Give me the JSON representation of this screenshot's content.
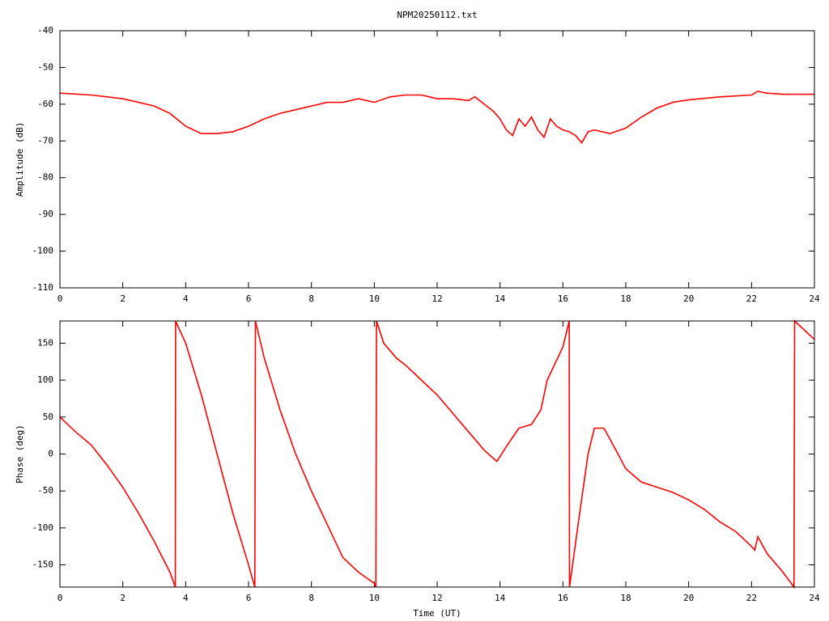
{
  "chart_data": [
    {
      "type": "line",
      "title": "NPM20250112.txt",
      "y_label": "Amplitude (dB)",
      "xlim": [
        0,
        24
      ],
      "ylim": [
        -110,
        -40
      ],
      "xticks": [
        0,
        2,
        4,
        6,
        8,
        10,
        12,
        14,
        16,
        18,
        20,
        22,
        24
      ],
      "yticks": [
        -110,
        -100,
        -90,
        -80,
        -70,
        -60,
        -50,
        -40
      ],
      "grid": false,
      "x": [
        0,
        1,
        2,
        3,
        3.5,
        4,
        4.5,
        5,
        5.5,
        6,
        6.5,
        7,
        7.5,
        8,
        8.5,
        9,
        9.5,
        10,
        10.5,
        11,
        11.5,
        12,
        12.5,
        13,
        13.2,
        13.5,
        13.8,
        14,
        14.2,
        14.4,
        14.6,
        14.8,
        15,
        15.2,
        15.4,
        15.6,
        15.8,
        16,
        16.2,
        16.4,
        16.6,
        16.8,
        17,
        17.5,
        18,
        18.5,
        19,
        19.5,
        20,
        21,
        22,
        22.2,
        22.5,
        23,
        24
      ],
      "series": [
        {
          "color": "#ff0000",
          "values": [
            -57,
            -57.5,
            -58.5,
            -60.5,
            -62.5,
            -66,
            -68,
            -68,
            -67.5,
            -66,
            -64,
            -62.5,
            -61.5,
            -60.5,
            -59.5,
            -59.5,
            -58.5,
            -59.5,
            -58,
            -57.5,
            -57.5,
            -58.5,
            -58.5,
            -59,
            -58,
            -60,
            -62,
            -64,
            -67,
            -68.5,
            -64,
            -66,
            -63.5,
            -67,
            -69,
            -64,
            -66,
            -67,
            -67.5,
            -68.5,
            -70.5,
            -67.5,
            -67,
            -68,
            -66.5,
            -63.5,
            -61,
            -59.5,
            -58.8,
            -58,
            -57.5,
            -56.5,
            -57,
            -57.3,
            -57.3
          ]
        }
      ]
    },
    {
      "type": "line",
      "x_label": "Time (UT)",
      "y_label": "Phase (deg)",
      "xlim": [
        0,
        24
      ],
      "ylim": [
        -180,
        180
      ],
      "xticks": [
        0,
        2,
        4,
        6,
        8,
        10,
        12,
        14,
        16,
        18,
        20,
        22,
        24
      ],
      "yticks": [
        -150,
        -100,
        -50,
        0,
        50,
        100,
        150
      ],
      "grid": false,
      "x": [
        0,
        0.5,
        1,
        1.5,
        2,
        2.5,
        3,
        3.5,
        3.67,
        3.68,
        4,
        4.5,
        5,
        5.5,
        6,
        6.2,
        6.22,
        6.5,
        7,
        7.5,
        8,
        8.5,
        9,
        9.5,
        10,
        10.05,
        10.07,
        10.3,
        10.7,
        11,
        11.5,
        12,
        12.5,
        13,
        13.5,
        13.9,
        14.2,
        14.6,
        15,
        15.3,
        15.5,
        16,
        16.2,
        16.21,
        16.5,
        16.8,
        17,
        17.3,
        17.5,
        18,
        18.5,
        19,
        19.5,
        20,
        20.5,
        21,
        21.5,
        22,
        22.1,
        22.2,
        22.5,
        23,
        23.35,
        23.37,
        24
      ],
      "series": [
        {
          "color": "#ff0000",
          "values": [
            50,
            30,
            12,
            -15,
            -45,
            -80,
            -118,
            -160,
            -180,
            180,
            150,
            80,
            0,
            -80,
            -150,
            -180,
            180,
            130,
            60,
            0,
            -50,
            -95,
            -140,
            -160,
            -175,
            -180,
            180,
            150,
            130,
            120,
            100,
            80,
            55,
            30,
            5,
            -10,
            10,
            35,
            40,
            60,
            100,
            145,
            180,
            -180,
            -90,
            0,
            35,
            35,
            20,
            -20,
            -38,
            -45,
            -52,
            -62,
            -75,
            -92,
            -105,
            -125,
            -130,
            -112,
            -135,
            -160,
            -180,
            180,
            155
          ]
        }
      ]
    }
  ]
}
